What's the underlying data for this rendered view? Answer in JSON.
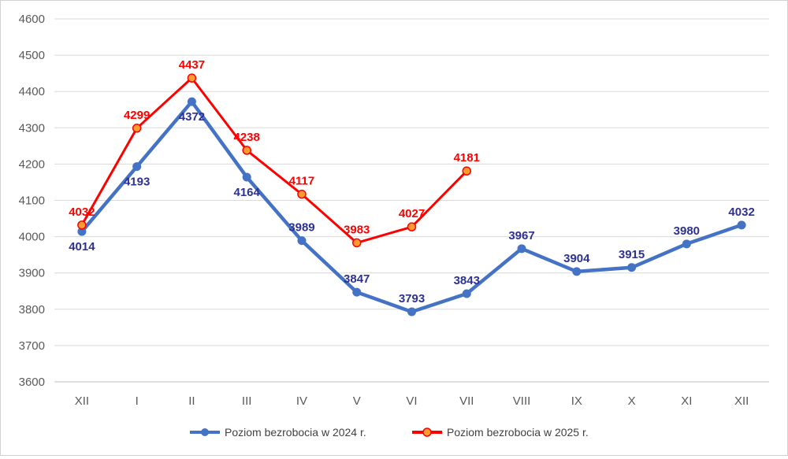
{
  "chart_data": {
    "type": "line",
    "title": "",
    "xlabel": "",
    "ylabel": "",
    "categories": [
      "XII",
      "I",
      "II",
      "III",
      "IV",
      "V",
      "VI",
      "VII",
      "VIII",
      "IX",
      "X",
      "XI",
      "XII"
    ],
    "ylim": [
      3600,
      4600
    ],
    "yticks": [
      3600,
      3700,
      3800,
      3900,
      4000,
      4100,
      4200,
      4300,
      4400,
      4500,
      4600
    ],
    "grid": true,
    "legend_position": "bottom",
    "series": [
      {
        "name": "Poziom bezrobocia w 2024 r.",
        "color": "#4472c4",
        "label_color": "#2e3192",
        "marker": "circle",
        "values": [
          4014,
          4193,
          4372,
          4164,
          3989,
          3847,
          3793,
          3843,
          3967,
          3904,
          3915,
          3980,
          4032
        ]
      },
      {
        "name": "Poziom bezrobocia w 2025 r.",
        "color": "#ff0000",
        "label_color": "#ff0000",
        "marker": "circle-orange",
        "values": [
          4032,
          4299,
          4437,
          4238,
          4117,
          3983,
          4027,
          4181,
          null,
          null,
          null,
          null,
          null
        ]
      }
    ]
  }
}
